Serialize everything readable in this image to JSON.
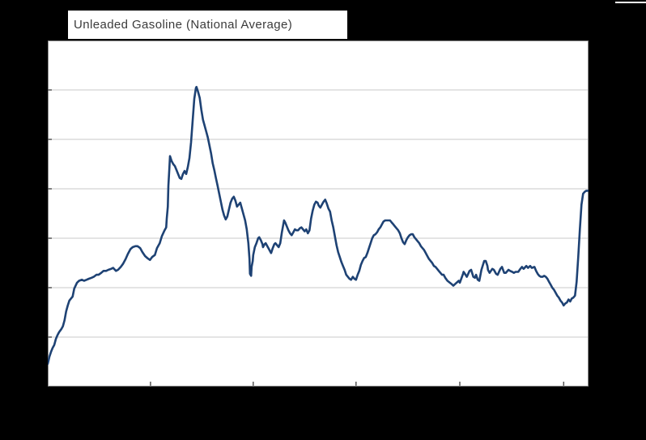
{
  "header": {
    "title": "Unleaded Gasoline (National Average)"
  },
  "colors": {
    "background": "#000000",
    "plot_background": "#ffffff",
    "line": "#1e4274",
    "gridline": "#c9c9c9",
    "axis_border": "#8e8e8e",
    "tick": "#555555",
    "title_text": "#3b3b3b",
    "title_background": "#ffffff"
  },
  "chart_data": {
    "type": "line",
    "title": "Unleaded Gasoline (National Average)",
    "xlabel": "",
    "ylabel": "",
    "legend": "none",
    "grid": "horizontal",
    "axis_tick_labels_visible": false,
    "value_scale_note": "axis tick labels are cropped out of the image; values estimated in USD/gallon assuming 0.50 per gridline with bottom border = 1.00",
    "ylim": [
      1.0,
      4.5
    ],
    "y_gridline_values": [
      4.0,
      3.5,
      3.0,
      2.5,
      2.0,
      1.5
    ],
    "x_tick_positions_pct": [
      19.0,
      38.0,
      57.0,
      76.2,
      95.4
    ],
    "series": [
      {
        "name": "Unleaded Gasoline (National Average)",
        "points": [
          [
            0,
            1.23
          ],
          [
            0.3,
            1.3
          ],
          [
            0.6,
            1.35
          ],
          [
            0.9,
            1.39
          ],
          [
            1.2,
            1.42
          ],
          [
            1.5,
            1.48
          ],
          [
            1.8,
            1.52
          ],
          [
            2.1,
            1.55
          ],
          [
            2.5,
            1.58
          ],
          [
            2.8,
            1.61
          ],
          [
            3.1,
            1.67
          ],
          [
            3.4,
            1.76
          ],
          [
            3.7,
            1.82
          ],
          [
            4.0,
            1.87
          ],
          [
            4.3,
            1.89
          ],
          [
            4.6,
            1.91
          ],
          [
            4.9,
            1.99
          ],
          [
            5.4,
            2.05
          ],
          [
            5.8,
            2.07
          ],
          [
            6.3,
            2.08
          ],
          [
            6.7,
            2.07
          ],
          [
            7.2,
            2.08
          ],
          [
            7.6,
            2.09
          ],
          [
            8.1,
            2.1
          ],
          [
            8.5,
            2.11
          ],
          [
            9.0,
            2.13
          ],
          [
            9.4,
            2.13
          ],
          [
            9.9,
            2.15
          ],
          [
            10.3,
            2.17
          ],
          [
            10.8,
            2.17
          ],
          [
            11.2,
            2.18
          ],
          [
            11.7,
            2.19
          ],
          [
            12.1,
            2.2
          ],
          [
            12.6,
            2.17
          ],
          [
            13.0,
            2.18
          ],
          [
            13.5,
            2.21
          ],
          [
            13.9,
            2.24
          ],
          [
            14.4,
            2.29
          ],
          [
            14.8,
            2.34
          ],
          [
            15.3,
            2.39
          ],
          [
            15.7,
            2.41
          ],
          [
            16.2,
            2.42
          ],
          [
            16.6,
            2.42
          ],
          [
            17.1,
            2.4
          ],
          [
            17.5,
            2.36
          ],
          [
            18.0,
            2.32
          ],
          [
            18.4,
            2.3
          ],
          [
            18.9,
            2.28
          ],
          [
            19.3,
            2.31
          ],
          [
            19.8,
            2.33
          ],
          [
            20.2,
            2.4
          ],
          [
            20.7,
            2.45
          ],
          [
            21.1,
            2.52
          ],
          [
            21.6,
            2.58
          ],
          [
            21.9,
            2.61
          ],
          [
            22.0,
            2.7
          ],
          [
            22.2,
            2.82
          ],
          [
            22.3,
            3.03
          ],
          [
            22.5,
            3.22
          ],
          [
            22.6,
            3.33
          ],
          [
            22.9,
            3.28
          ],
          [
            23.2,
            3.25
          ],
          [
            23.5,
            3.23
          ],
          [
            23.8,
            3.19
          ],
          [
            24.1,
            3.15
          ],
          [
            24.4,
            3.11
          ],
          [
            24.7,
            3.1
          ],
          [
            25.0,
            3.15
          ],
          [
            25.3,
            3.18
          ],
          [
            25.6,
            3.15
          ],
          [
            25.9,
            3.22
          ],
          [
            26.2,
            3.31
          ],
          [
            26.5,
            3.47
          ],
          [
            26.8,
            3.69
          ],
          [
            27.1,
            3.91
          ],
          [
            27.4,
            4.02
          ],
          [
            27.5,
            4.03
          ],
          [
            27.8,
            3.98
          ],
          [
            28.1,
            3.92
          ],
          [
            28.4,
            3.8
          ],
          [
            28.7,
            3.7
          ],
          [
            29.0,
            3.64
          ],
          [
            29.3,
            3.58
          ],
          [
            29.6,
            3.52
          ],
          [
            29.9,
            3.44
          ],
          [
            30.2,
            3.36
          ],
          [
            30.5,
            3.26
          ],
          [
            30.8,
            3.19
          ],
          [
            31.1,
            3.11
          ],
          [
            31.4,
            3.03
          ],
          [
            31.7,
            2.95
          ],
          [
            32.0,
            2.87
          ],
          [
            32.3,
            2.79
          ],
          [
            32.6,
            2.73
          ],
          [
            32.9,
            2.69
          ],
          [
            33.2,
            2.72
          ],
          [
            33.5,
            2.79
          ],
          [
            33.8,
            2.86
          ],
          [
            34.1,
            2.9
          ],
          [
            34.4,
            2.92
          ],
          [
            34.7,
            2.88
          ],
          [
            35.0,
            2.82
          ],
          [
            35.3,
            2.84
          ],
          [
            35.6,
            2.86
          ],
          [
            35.9,
            2.8
          ],
          [
            36.2,
            2.74
          ],
          [
            36.5,
            2.68
          ],
          [
            36.8,
            2.59
          ],
          [
            37.1,
            2.45
          ],
          [
            37.3,
            2.29
          ],
          [
            37.4,
            2.14
          ],
          [
            37.6,
            2.12
          ],
          [
            37.7,
            2.21
          ],
          [
            37.9,
            2.27
          ],
          [
            38.0,
            2.33
          ],
          [
            38.3,
            2.41
          ],
          [
            38.6,
            2.45
          ],
          [
            38.9,
            2.5
          ],
          [
            39.1,
            2.51
          ],
          [
            39.4,
            2.48
          ],
          [
            39.7,
            2.44
          ],
          [
            39.8,
            2.41
          ],
          [
            40.1,
            2.44
          ],
          [
            40.3,
            2.45
          ],
          [
            40.6,
            2.42
          ],
          [
            40.9,
            2.39
          ],
          [
            41.2,
            2.36
          ],
          [
            41.3,
            2.35
          ],
          [
            41.6,
            2.4
          ],
          [
            41.9,
            2.44
          ],
          [
            42.1,
            2.45
          ],
          [
            42.4,
            2.43
          ],
          [
            42.7,
            2.41
          ],
          [
            43.0,
            2.45
          ],
          [
            43.3,
            2.56
          ],
          [
            43.6,
            2.65
          ],
          [
            43.7,
            2.68
          ],
          [
            43.9,
            2.66
          ],
          [
            44.2,
            2.62
          ],
          [
            44.5,
            2.58
          ],
          [
            44.8,
            2.55
          ],
          [
            45.1,
            2.53
          ],
          [
            45.4,
            2.56
          ],
          [
            45.7,
            2.59
          ],
          [
            46.0,
            2.58
          ],
          [
            46.3,
            2.58
          ],
          [
            46.6,
            2.6
          ],
          [
            46.9,
            2.61
          ],
          [
            47.2,
            2.59
          ],
          [
            47.5,
            2.57
          ],
          [
            47.8,
            2.59
          ],
          [
            48.1,
            2.55
          ],
          [
            48.4,
            2.58
          ],
          [
            48.7,
            2.7
          ],
          [
            49.0,
            2.78
          ],
          [
            49.3,
            2.84
          ],
          [
            49.6,
            2.87
          ],
          [
            49.9,
            2.86
          ],
          [
            50.1,
            2.83
          ],
          [
            50.4,
            2.81
          ],
          [
            50.7,
            2.84
          ],
          [
            51.0,
            2.87
          ],
          [
            51.3,
            2.89
          ],
          [
            51.6,
            2.85
          ],
          [
            51.9,
            2.8
          ],
          [
            52.2,
            2.77
          ],
          [
            52.5,
            2.68
          ],
          [
            52.8,
            2.61
          ],
          [
            53.1,
            2.52
          ],
          [
            53.4,
            2.43
          ],
          [
            53.7,
            2.36
          ],
          [
            54.0,
            2.31
          ],
          [
            54.3,
            2.26
          ],
          [
            54.6,
            2.22
          ],
          [
            54.9,
            2.18
          ],
          [
            55.2,
            2.13
          ],
          [
            55.5,
            2.11
          ],
          [
            55.8,
            2.09
          ],
          [
            56.1,
            2.08
          ],
          [
            56.4,
            2.11
          ],
          [
            56.7,
            2.09
          ],
          [
            57.0,
            2.08
          ],
          [
            57.3,
            2.13
          ],
          [
            57.6,
            2.17
          ],
          [
            57.9,
            2.23
          ],
          [
            58.2,
            2.27
          ],
          [
            58.5,
            2.3
          ],
          [
            58.8,
            2.31
          ],
          [
            59.1,
            2.35
          ],
          [
            59.4,
            2.4
          ],
          [
            59.7,
            2.45
          ],
          [
            60.0,
            2.5
          ],
          [
            60.3,
            2.53
          ],
          [
            60.6,
            2.54
          ],
          [
            60.9,
            2.56
          ],
          [
            61.2,
            2.59
          ],
          [
            61.5,
            2.61
          ],
          [
            61.8,
            2.64
          ],
          [
            62.1,
            2.67
          ],
          [
            62.4,
            2.68
          ],
          [
            62.7,
            2.68
          ],
          [
            63.0,
            2.68
          ],
          [
            63.3,
            2.68
          ],
          [
            63.6,
            2.66
          ],
          [
            63.9,
            2.64
          ],
          [
            64.2,
            2.62
          ],
          [
            64.5,
            2.6
          ],
          [
            64.8,
            2.58
          ],
          [
            65.1,
            2.55
          ],
          [
            65.4,
            2.5
          ],
          [
            65.7,
            2.46
          ],
          [
            66.0,
            2.44
          ],
          [
            66.3,
            2.48
          ],
          [
            66.6,
            2.51
          ],
          [
            66.9,
            2.53
          ],
          [
            67.2,
            2.54
          ],
          [
            67.5,
            2.54
          ],
          [
            67.8,
            2.51
          ],
          [
            68.1,
            2.49
          ],
          [
            68.4,
            2.47
          ],
          [
            68.7,
            2.45
          ],
          [
            69.0,
            2.42
          ],
          [
            69.3,
            2.4
          ],
          [
            69.6,
            2.38
          ],
          [
            69.9,
            2.35
          ],
          [
            70.2,
            2.32
          ],
          [
            70.5,
            2.29
          ],
          [
            70.8,
            2.27
          ],
          [
            71.1,
            2.25
          ],
          [
            71.4,
            2.22
          ],
          [
            71.7,
            2.21
          ],
          [
            72.0,
            2.19
          ],
          [
            72.3,
            2.17
          ],
          [
            72.6,
            2.15
          ],
          [
            72.9,
            2.13
          ],
          [
            73.2,
            2.13
          ],
          [
            73.5,
            2.1
          ],
          [
            73.9,
            2.07
          ],
          [
            74.6,
            2.04
          ],
          [
            75.0,
            2.02
          ],
          [
            75.4,
            2.04
          ],
          [
            76.0,
            2.07
          ],
          [
            76.2,
            2.05
          ],
          [
            76.8,
            2.14
          ],
          [
            76.9,
            2.16
          ],
          [
            77.5,
            2.11
          ],
          [
            78.0,
            2.17
          ],
          [
            78.3,
            2.18
          ],
          [
            78.7,
            2.11
          ],
          [
            79.0,
            2.1
          ],
          [
            79.2,
            2.13
          ],
          [
            79.5,
            2.08
          ],
          [
            79.8,
            2.07
          ],
          [
            80.2,
            2.18
          ],
          [
            80.7,
            2.27
          ],
          [
            81.0,
            2.27
          ],
          [
            81.3,
            2.22
          ],
          [
            81.4,
            2.18
          ],
          [
            81.7,
            2.15
          ],
          [
            82.2,
            2.19
          ],
          [
            82.5,
            2.18
          ],
          [
            82.9,
            2.14
          ],
          [
            83.2,
            2.13
          ],
          [
            83.7,
            2.19
          ],
          [
            84.0,
            2.21
          ],
          [
            84.4,
            2.15
          ],
          [
            84.7,
            2.15
          ],
          [
            85.2,
            2.18
          ],
          [
            85.5,
            2.17
          ],
          [
            85.9,
            2.16
          ],
          [
            86.2,
            2.15
          ],
          [
            86.5,
            2.16
          ],
          [
            87.0,
            2.16
          ],
          [
            87.4,
            2.19
          ],
          [
            87.7,
            2.21
          ],
          [
            88.0,
            2.19
          ],
          [
            88.5,
            2.22
          ],
          [
            88.8,
            2.2
          ],
          [
            89.2,
            2.22
          ],
          [
            89.5,
            2.2
          ],
          [
            90.0,
            2.21
          ],
          [
            90.3,
            2.17
          ],
          [
            90.6,
            2.14
          ],
          [
            90.9,
            2.12
          ],
          [
            91.2,
            2.11
          ],
          [
            91.5,
            2.11
          ],
          [
            91.8,
            2.12
          ],
          [
            92.1,
            2.11
          ],
          [
            92.4,
            2.09
          ],
          [
            92.7,
            2.06
          ],
          [
            93.0,
            2.03
          ],
          [
            93.3,
            2.0
          ],
          [
            93.6,
            1.98
          ],
          [
            93.9,
            1.95
          ],
          [
            94.2,
            1.92
          ],
          [
            94.5,
            1.9
          ],
          [
            94.8,
            1.87
          ],
          [
            95.1,
            1.85
          ],
          [
            95.4,
            1.82
          ],
          [
            95.7,
            1.84
          ],
          [
            96.0,
            1.85
          ],
          [
            96.3,
            1.88
          ],
          [
            96.6,
            1.86
          ],
          [
            96.9,
            1.89
          ],
          [
            97.2,
            1.9
          ],
          [
            97.5,
            1.92
          ],
          [
            97.8,
            2.06
          ],
          [
            98.1,
            2.31
          ],
          [
            98.4,
            2.59
          ],
          [
            98.7,
            2.84
          ],
          [
            99.0,
            2.95
          ],
          [
            99.3,
            2.97
          ],
          [
            99.6,
            2.98
          ],
          [
            100,
            2.98
          ]
        ]
      }
    ]
  }
}
